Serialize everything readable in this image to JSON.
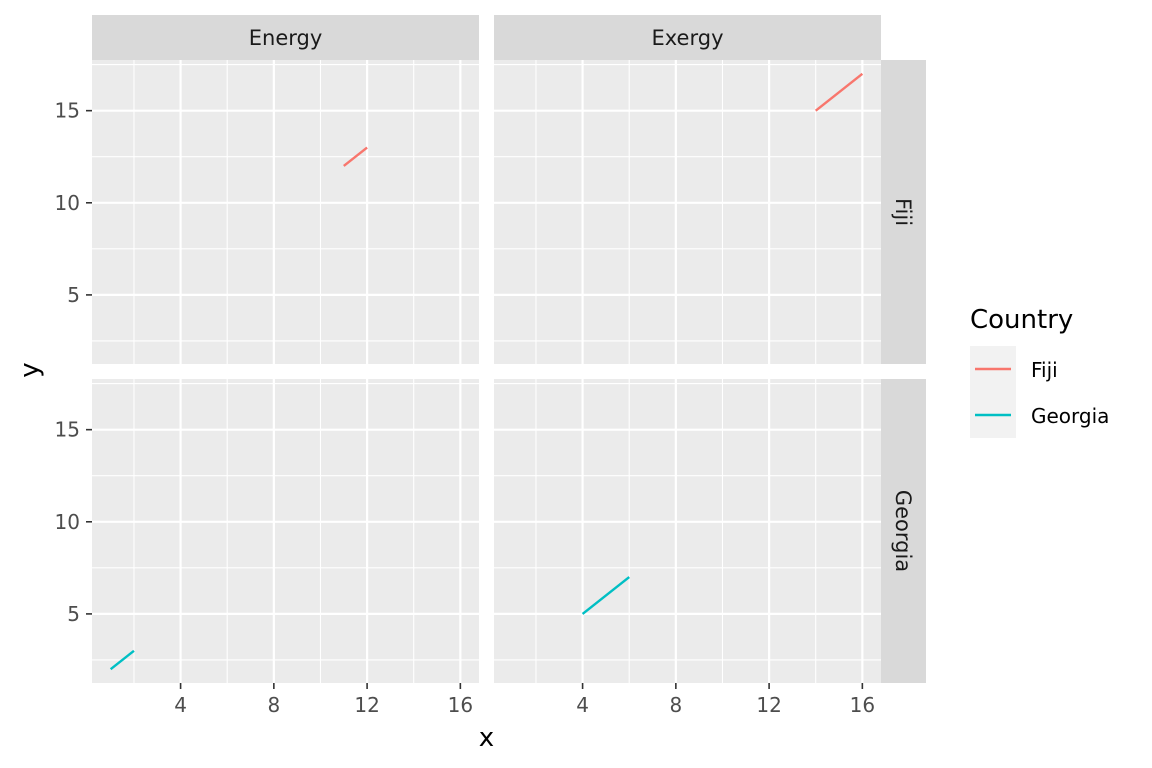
{
  "chart_data": {
    "type": "line",
    "facet_cols": [
      "Energy",
      "Exergy"
    ],
    "facet_rows": [
      "Fiji",
      "Georgia"
    ],
    "xlabel": "x",
    "ylabel": "y",
    "xlim": [
      0.2,
      16.8
    ],
    "ylim": [
      1.25,
      17.75
    ],
    "x_ticks": [
      4,
      8,
      12,
      16
    ],
    "y_ticks": [
      5,
      10,
      15
    ],
    "legend": {
      "title": "Country",
      "position": "right",
      "entries": [
        {
          "name": "Fiji",
          "color": "#F8766D"
        },
        {
          "name": "Georgia",
          "color": "#00BFC4"
        }
      ]
    },
    "panels": [
      {
        "col": "Energy",
        "row": "Fiji",
        "series": [
          {
            "name": "Fiji",
            "color": "#F8766D",
            "x": [
              11,
              12
            ],
            "y": [
              12,
              13
            ]
          }
        ]
      },
      {
        "col": "Exergy",
        "row": "Fiji",
        "series": [
          {
            "name": "Fiji",
            "color": "#F8766D",
            "x": [
              14,
              16
            ],
            "y": [
              15,
              17
            ]
          }
        ]
      },
      {
        "col": "Energy",
        "row": "Georgia",
        "series": [
          {
            "name": "Georgia",
            "color": "#00BFC4",
            "x": [
              1,
              2
            ],
            "y": [
              2,
              3
            ]
          }
        ]
      },
      {
        "col": "Exergy",
        "row": "Georgia",
        "series": [
          {
            "name": "Georgia",
            "color": "#00BFC4",
            "x": [
              4,
              6
            ],
            "y": [
              5,
              7
            ]
          }
        ]
      }
    ],
    "grid": true
  }
}
